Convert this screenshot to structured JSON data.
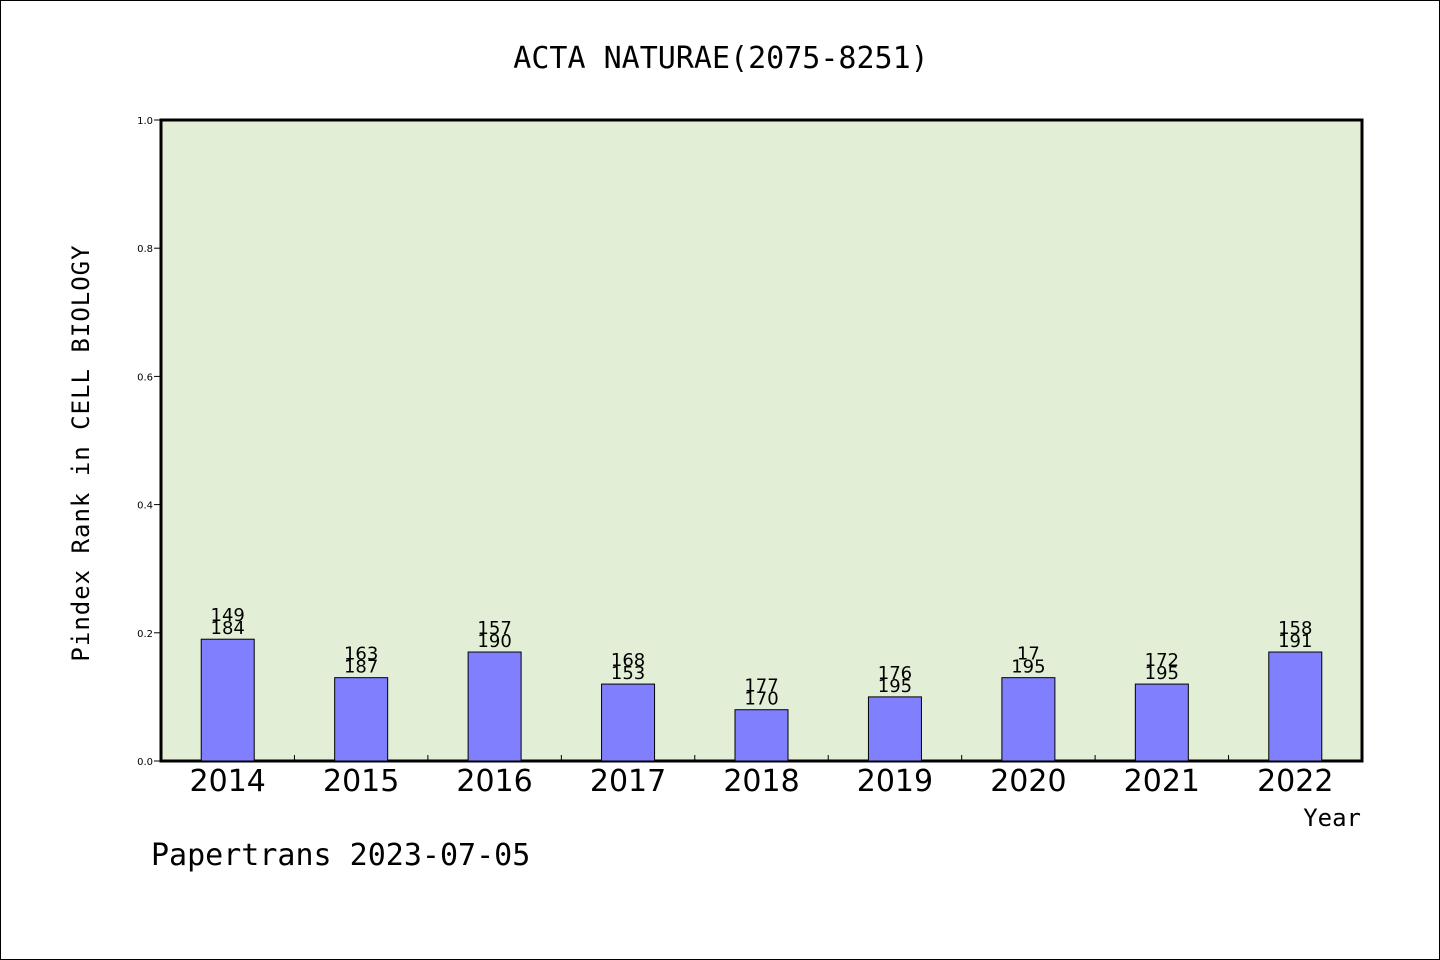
{
  "chart_data": {
    "type": "bar",
    "title": "ACTA NATURAE(2075-8251)",
    "xlabel": "Year",
    "ylabel": "Pindex Rank in CELL BIOLOGY",
    "categories": [
      "2014",
      "2015",
      "2016",
      "2017",
      "2018",
      "2019",
      "2020",
      "2021",
      "2022"
    ],
    "values": [
      0.19,
      0.13,
      0.17,
      0.12,
      0.08,
      0.1,
      0.13,
      0.12,
      0.17
    ],
    "label_top": [
      "149",
      "163",
      "157",
      "168",
      "177",
      "176",
      "17",
      "172",
      "158"
    ],
    "label_bottom": [
      "184",
      "187",
      "190",
      "153",
      "170",
      "195",
      "195",
      "195",
      "191"
    ],
    "ylim": [
      0.0,
      1.0
    ],
    "yticks": [
      "0.0",
      "0.2",
      "0.4",
      "0.6",
      "0.8",
      "1.0"
    ],
    "grid": false,
    "plot_background": "#e2efd6",
    "bar_color": "#8080ff"
  },
  "footer": "Papertrans 2023-07-05"
}
